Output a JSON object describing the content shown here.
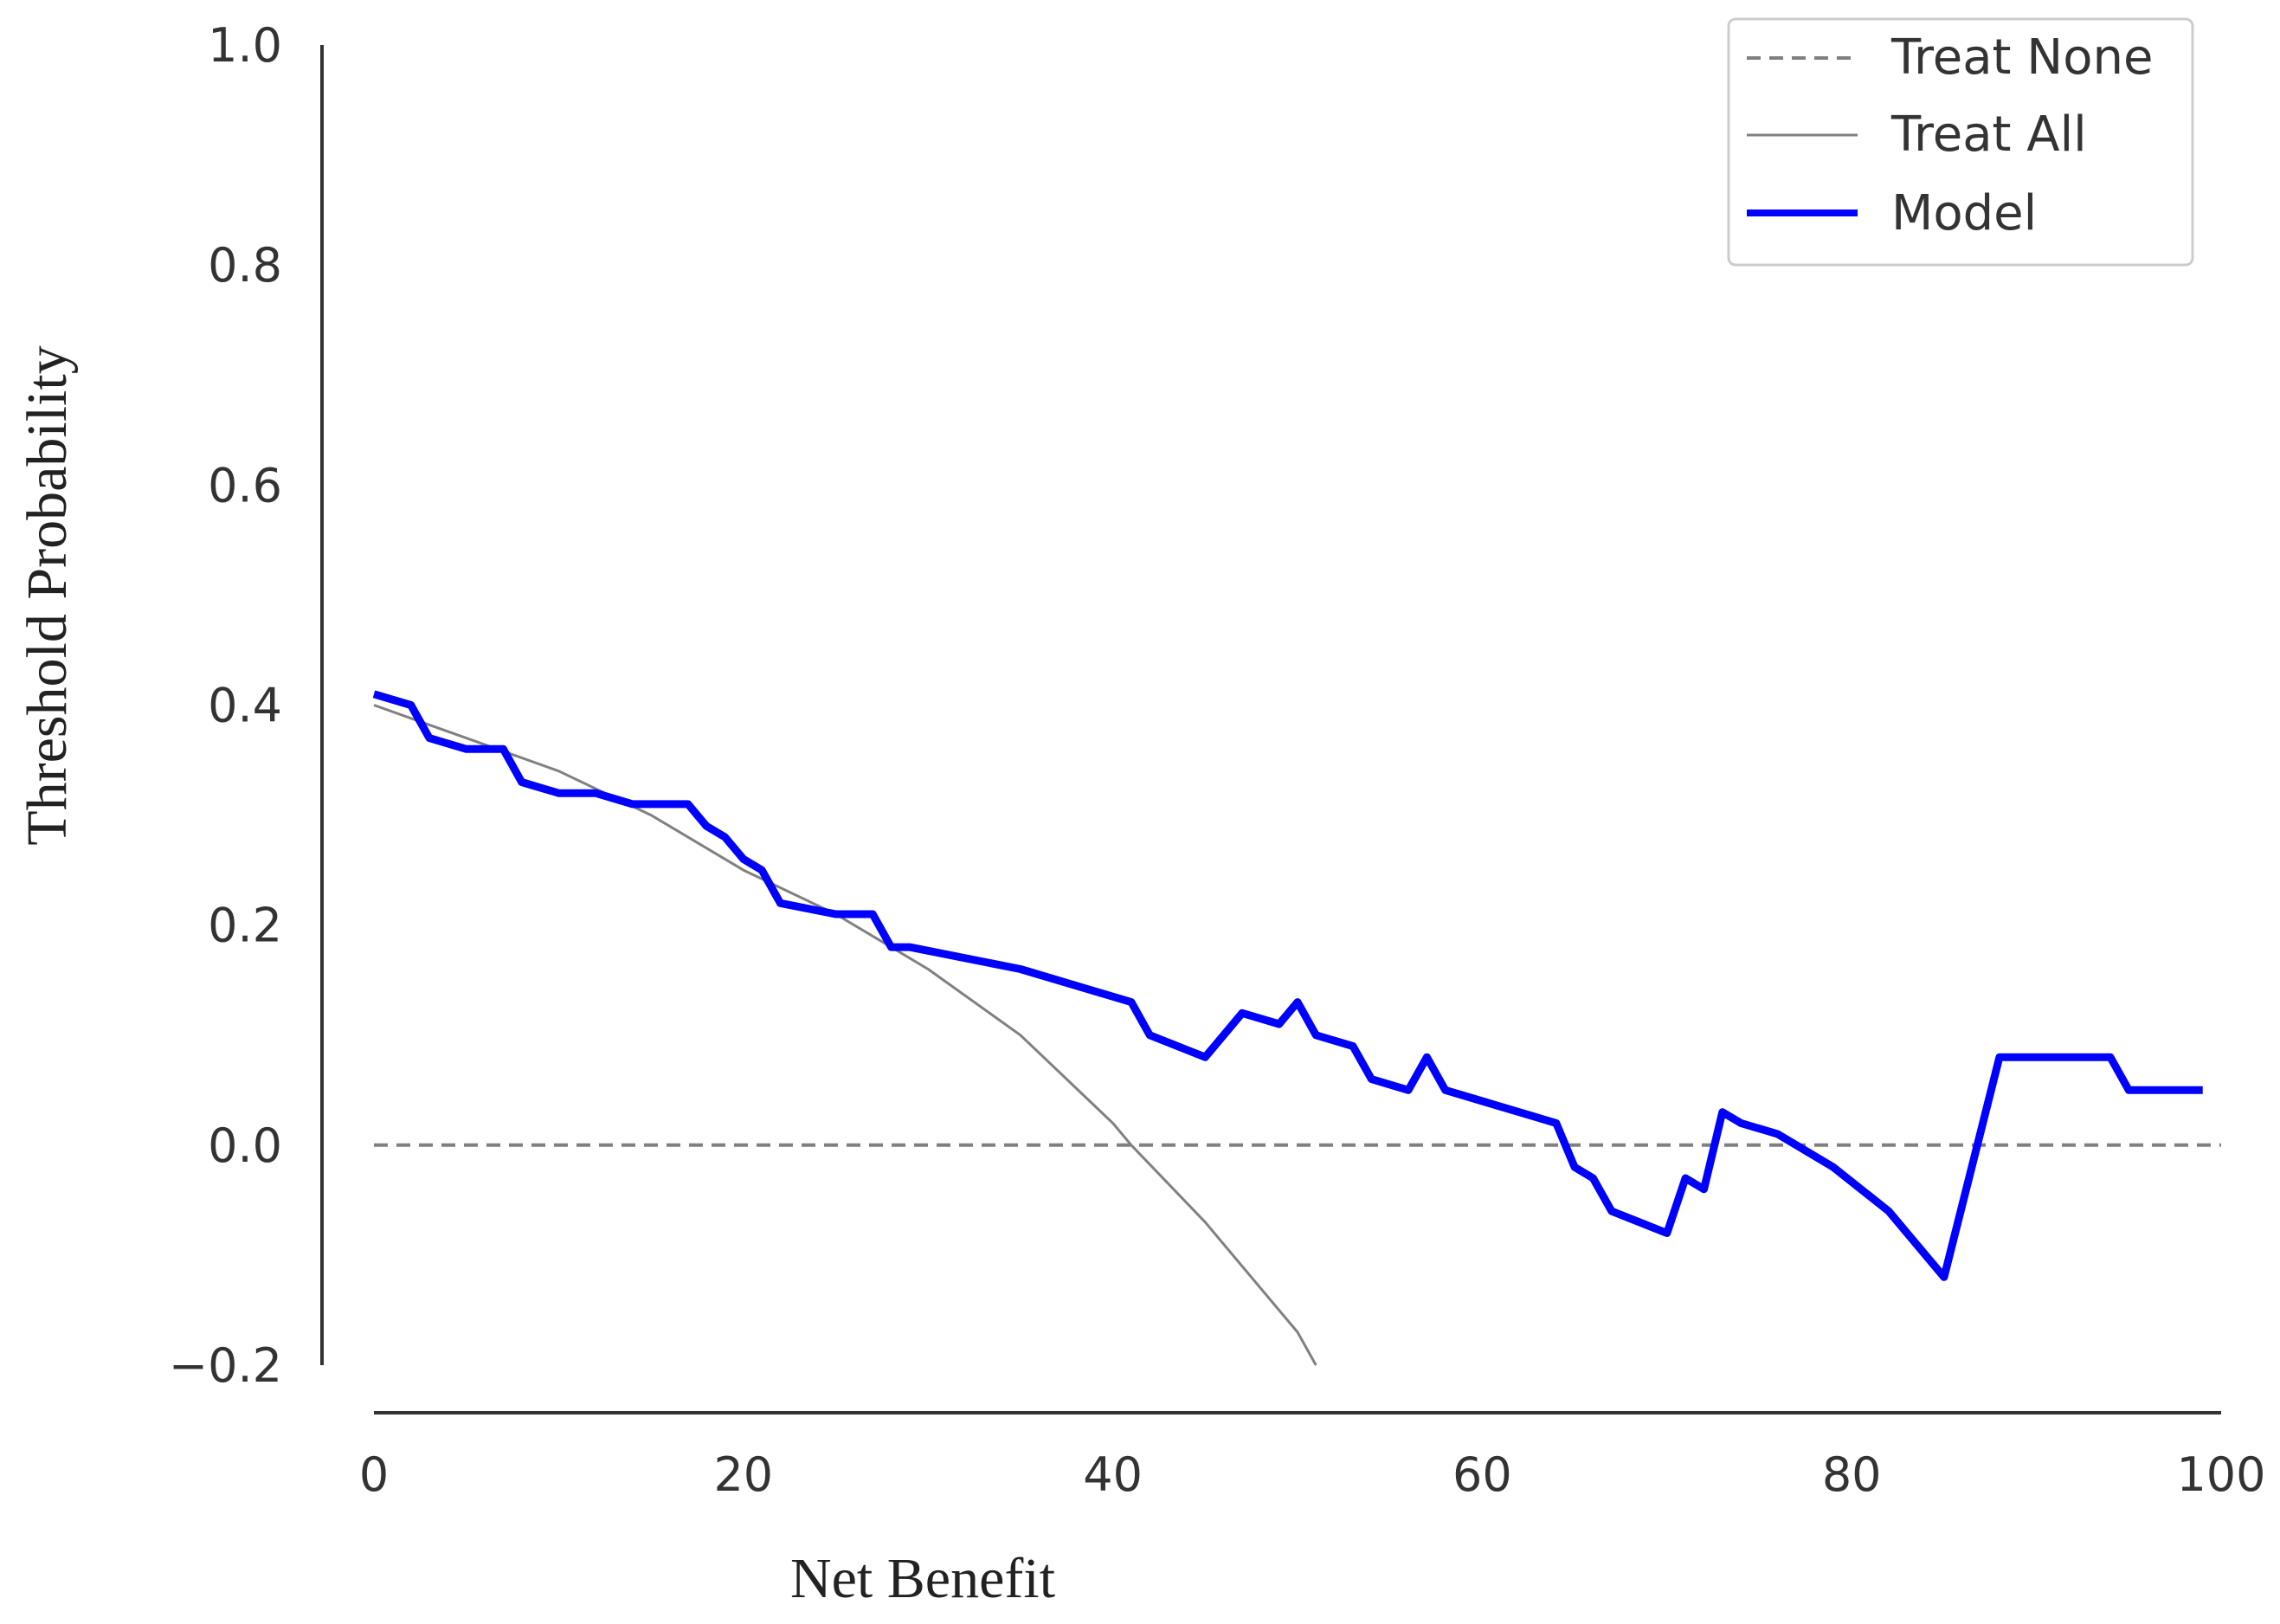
{
  "chart_data": {
    "type": "line",
    "title": "",
    "xlabel": "Net Benefit",
    "ylabel": "Threshold Probability",
    "xlim": [
      0,
      100
    ],
    "ylim": [
      -0.2,
      1.0
    ],
    "xticks": [
      0,
      20,
      40,
      60,
      80,
      100
    ],
    "xtick_labels": [
      "0",
      "20",
      "40",
      "60",
      "80",
      "100"
    ],
    "yticks": [
      -0.2,
      0.0,
      0.2,
      0.4,
      0.6,
      0.8,
      1.0
    ],
    "ytick_labels": [
      "−0.2",
      "0.0",
      "0.2",
      "0.4",
      "0.6",
      "0.8",
      "1.0"
    ],
    "grid": false,
    "legend_position": "top-right",
    "series": [
      {
        "name": "Treat None",
        "style": "dashed",
        "color": "#808080",
        "x": [
          0,
          100
        ],
        "y": [
          0,
          0
        ]
      },
      {
        "name": "Treat All",
        "style": "solid-thin",
        "color": "#808080",
        "x": [
          0,
          5,
          10,
          15,
          20,
          25,
          30,
          35,
          40,
          41,
          45,
          50,
          51
        ],
        "y": [
          0.4,
          0.37,
          0.34,
          0.3,
          0.25,
          0.21,
          0.16,
          0.1,
          0.02,
          0.0,
          -0.07,
          -0.17,
          -0.2
        ]
      },
      {
        "name": "Model",
        "style": "solid-thick",
        "color": "#0000ff",
        "x": [
          0,
          2,
          3,
          5,
          7,
          8,
          10,
          12,
          14,
          16,
          17,
          18,
          19,
          20,
          21,
          22,
          25,
          27,
          28,
          29,
          35,
          41,
          42,
          45,
          47,
          49,
          50,
          51,
          53,
          54,
          56,
          57,
          58,
          60,
          64,
          65,
          66,
          67,
          70,
          71,
          72,
          73,
          74,
          76,
          79,
          82,
          83,
          85,
          88,
          89,
          94,
          95,
          99
        ],
        "y": [
          0.41,
          0.4,
          0.37,
          0.36,
          0.36,
          0.33,
          0.32,
          0.32,
          0.31,
          0.31,
          0.31,
          0.29,
          0.28,
          0.26,
          0.25,
          0.22,
          0.21,
          0.21,
          0.18,
          0.18,
          0.16,
          0.13,
          0.1,
          0.08,
          0.12,
          0.11,
          0.13,
          0.1,
          0.09,
          0.06,
          0.05,
          0.08,
          0.05,
          0.04,
          0.02,
          -0.02,
          -0.03,
          -0.06,
          -0.08,
          -0.03,
          -0.04,
          0.03,
          0.02,
          0.01,
          -0.02,
          -0.06,
          -0.08,
          -0.12,
          0.08,
          0.08,
          0.08,
          0.05,
          0.05
        ]
      }
    ]
  }
}
